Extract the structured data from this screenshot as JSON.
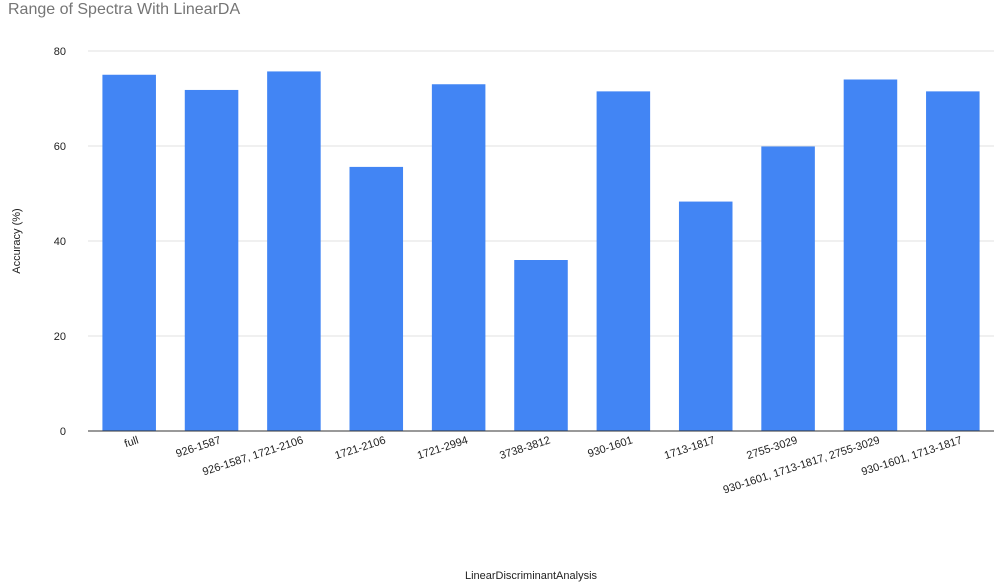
{
  "chart_data": {
    "type": "bar",
    "title": "Range of Spectra With LinearDA",
    "xlabel": "LinearDiscriminantAnalysis",
    "ylabel": "Accuracy  (%)",
    "ylim": [
      0,
      80
    ],
    "yticks": [
      0,
      20,
      40,
      60,
      80
    ],
    "grid": true,
    "categories": [
      "full",
      "926-1587",
      "926-1587, 1721-2106",
      "1721-2106",
      "1721-2994",
      "3738-3812",
      "930-1601",
      "1713-1817",
      "2755-3029",
      "930-1601, 1713-1817, 2755-3029",
      "930-1601, 1713-1817"
    ],
    "values": [
      75.0,
      71.8,
      75.7,
      55.6,
      73.0,
      36.0,
      71.5,
      48.3,
      59.9,
      74.0,
      71.5
    ],
    "colors": {
      "bar": "#4285f4",
      "grid": "#e0e0e0",
      "axis": "#333333",
      "title": "#757575"
    }
  }
}
